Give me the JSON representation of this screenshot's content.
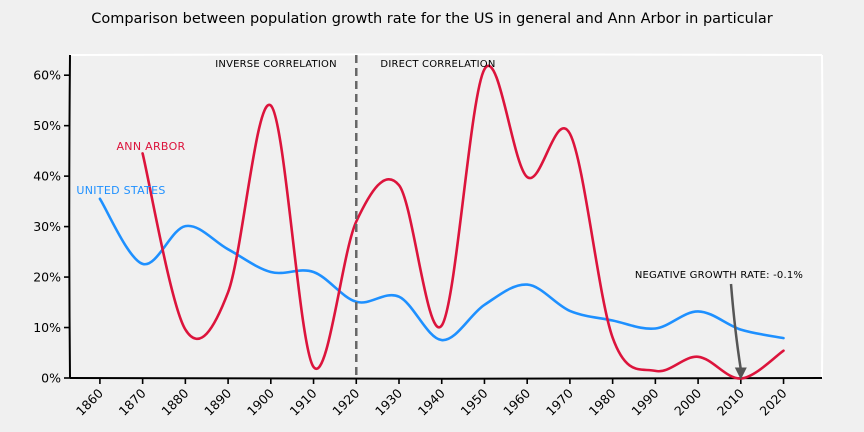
{
  "chart_data": {
    "type": "line",
    "title": "Comparison between population growth rate for the US in general and Ann Arbor in particular",
    "xlabel": "",
    "ylabel": "",
    "x": [
      1860,
      1870,
      1880,
      1890,
      1900,
      1910,
      1920,
      1930,
      1940,
      1950,
      1960,
      1970,
      1980,
      1990,
      2000,
      2010,
      2020
    ],
    "x_ticks": [
      "1860",
      "1870",
      "1880",
      "1890",
      "1900",
      "1910",
      "1920",
      "1930",
      "1940",
      "1950",
      "1960",
      "1970",
      "1980",
      "1990",
      "2000",
      "2010",
      "2020"
    ],
    "y_ticks": [
      "0%",
      "10%",
      "20%",
      "30%",
      "40%",
      "50%",
      "60%"
    ],
    "xlim": [
      1853,
      2029
    ],
    "ylim": [
      0,
      0.64
    ],
    "grid": false,
    "series": [
      {
        "name": "UNITED STATES",
        "color": "#1e90ff",
        "x": [
          1860,
          1870,
          1880,
          1890,
          1900,
          1910,
          1920,
          1930,
          1940,
          1950,
          1960,
          1970,
          1980,
          1990,
          2000,
          2010,
          2020
        ],
        "values": [
          0.355,
          0.226,
          0.301,
          0.255,
          0.21,
          0.21,
          0.151,
          0.161,
          0.075,
          0.145,
          0.185,
          0.133,
          0.114,
          0.098,
          0.132,
          0.096,
          0.079
        ]
      },
      {
        "name": "ANN ARBOR",
        "color": "#dc143c",
        "x": [
          1870,
          1880,
          1890,
          1900,
          1910,
          1920,
          1930,
          1940,
          1950,
          1960,
          1970,
          1980,
          1990,
          2000,
          2010,
          2020
        ],
        "values": [
          0.445,
          0.096,
          0.17,
          0.54,
          0.022,
          0.31,
          0.382,
          0.104,
          0.612,
          0.398,
          0.484,
          0.08,
          0.014,
          0.042,
          -0.001,
          0.054
        ]
      }
    ],
    "annotations": {
      "vline_x": 1920,
      "inverse_label": "INVERSE CORRELATION",
      "direct_label": "DIRECT CORRELATION",
      "negative_label": "NEGATIVE GROWTH RATE: -0.1%",
      "negative_point": {
        "x": 2010,
        "y": -0.001
      }
    }
  }
}
